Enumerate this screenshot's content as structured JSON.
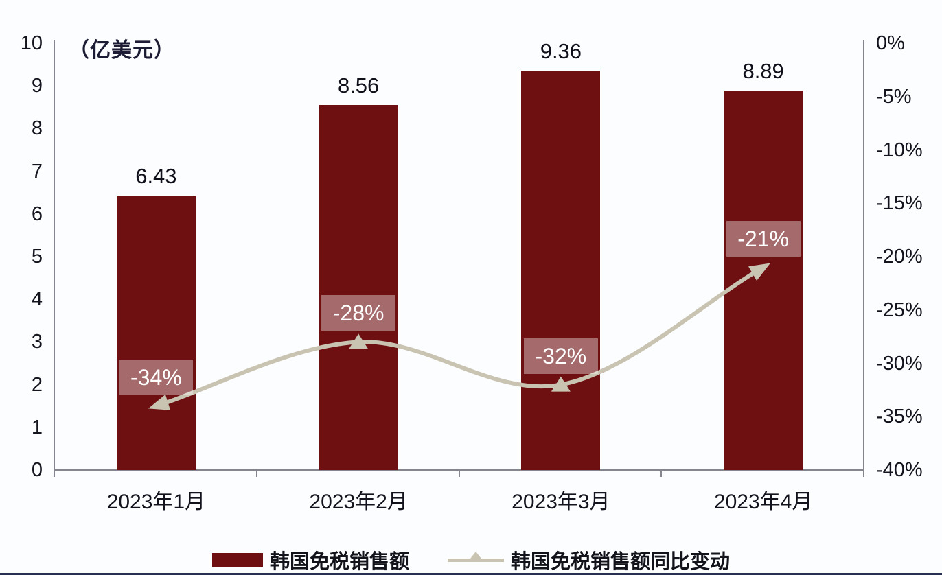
{
  "chart_data": {
    "type": "bar+line",
    "title": "",
    "categories": [
      "2023年1月",
      "2023年2月",
      "2023年3月",
      "2023年4月"
    ],
    "series": [
      {
        "name": "韩国免税销售额",
        "type": "bar",
        "axis": "left",
        "values": [
          6.43,
          8.56,
          9.36,
          8.89
        ],
        "labels": [
          "6.43",
          "8.56",
          "9.36",
          "8.89"
        ],
        "color": "#6e0f12"
      },
      {
        "name": "韩国免税销售额同比变动",
        "type": "line",
        "axis": "right",
        "values": [
          -34,
          -28,
          -32,
          -21
        ],
        "labels": [
          "-34%",
          "-28%",
          "-32%",
          "-21%"
        ],
        "color": "#c9c3b2"
      }
    ],
    "left_axis": {
      "unit_label": "（亿美元）",
      "min": 0,
      "max": 10,
      "tick_step": 1,
      "ticks": [
        "10",
        "9",
        "8",
        "7",
        "6",
        "5",
        "4",
        "3",
        "2",
        "1",
        "0"
      ]
    },
    "right_axis": {
      "min": -40,
      "max": 0,
      "tick_step": 5,
      "ticks": [
        "0%",
        "-5%",
        "-10%",
        "-15%",
        "-20%",
        "-25%",
        "-30%",
        "-35%",
        "-40%"
      ]
    },
    "legend": [
      {
        "label": "韩国免税销售额",
        "marker": "bar-swatch",
        "color": "#6e0f12"
      },
      {
        "label": "韩国免税销售额同比变动",
        "marker": "line-triangle",
        "color": "#c9c3b2"
      }
    ],
    "grid": false,
    "legend_position": "bottom"
  },
  "colors": {
    "bar": "#6e0f12",
    "line": "#c9c3b2",
    "axis": "#85858f",
    "text": "#14141e",
    "label_box_bg": "rgba(255,255,255,0.38)",
    "label_box_text": "#ffffff",
    "background": "#fcfdff",
    "bottom_edge": "#273050"
  }
}
